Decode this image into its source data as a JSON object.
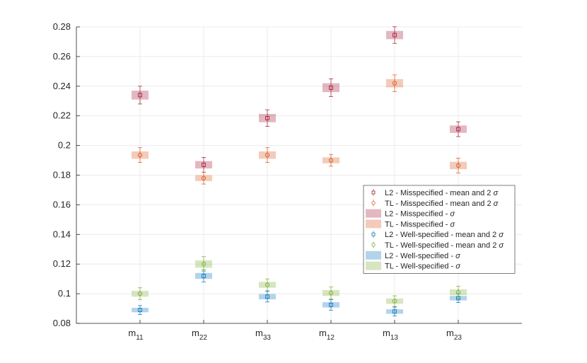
{
  "chart_data": {
    "type": "errorbar-boxplot",
    "categories": [
      "m",
      "m",
      "m",
      "m",
      "m",
      "m"
    ],
    "category_subscripts": [
      "11",
      "22",
      "33",
      "12",
      "13",
      "23"
    ],
    "ylim": [
      0.08,
      0.28
    ],
    "yticks": [
      0.08,
      0.1,
      0.12,
      0.14,
      0.16,
      0.18,
      0.2,
      0.22,
      0.24,
      0.26,
      0.28
    ],
    "ytick_labels": [
      "0.08",
      "0.1",
      "0.12",
      "0.14",
      "0.16",
      "0.18",
      "0.2",
      "0.22",
      "0.24",
      "0.26",
      "0.28"
    ],
    "grid": true,
    "series": [
      {
        "name": "L2 - Misspecified",
        "color": "#a2142f",
        "marker": "square",
        "mean": [
          0.234,
          0.187,
          0.2185,
          0.239,
          0.2745,
          0.211
        ],
        "std": [
          0.003,
          0.0025,
          0.0028,
          0.003,
          0.0028,
          0.0025
        ]
      },
      {
        "name": "TL - Misspecified",
        "color": "#d95319",
        "marker": "circle",
        "mean": [
          0.1935,
          0.178,
          0.1935,
          0.19,
          0.242,
          0.1865
        ],
        "std": [
          0.0025,
          0.002,
          0.0025,
          0.002,
          0.0028,
          0.0025
        ]
      },
      {
        "name": "L2 - Well-specified",
        "color": "#0072bd",
        "marker": "square",
        "mean": [
          0.089,
          0.112,
          0.098,
          0.0925,
          0.088,
          0.097
        ],
        "std": [
          0.0015,
          0.002,
          0.0018,
          0.0018,
          0.0015,
          0.0015
        ]
      },
      {
        "name": "TL - Well-specified",
        "color": "#77ac30",
        "marker": "circle",
        "mean": [
          0.1,
          0.12,
          0.106,
          0.1005,
          0.095,
          0.101
        ],
        "std": [
          0.002,
          0.0025,
          0.002,
          0.002,
          0.0018,
          0.002
        ]
      }
    ],
    "legend": {
      "placement": "right",
      "entries": [
        {
          "label": "L2 - Misspecified - mean and 2",
          "symbol": "σ",
          "kind": "marker",
          "series": 0
        },
        {
          "label": "TL - Misspecified - mean and 2",
          "symbol": "σ",
          "kind": "marker",
          "series": 1
        },
        {
          "label": "L2 - Misspecified -",
          "symbol": "σ",
          "kind": "patch",
          "series": 0
        },
        {
          "label": "TL - Misspecified -",
          "symbol": "σ",
          "kind": "patch",
          "series": 1
        },
        {
          "label": "L2 - Well-specified - mean and 2",
          "symbol": "σ",
          "kind": "marker",
          "series": 2
        },
        {
          "label": "TL - Well-specified - mean and 2",
          "symbol": "σ",
          "kind": "marker",
          "series": 3
        },
        {
          "label": "L2 - Well-specified -",
          "symbol": "σ",
          "kind": "patch",
          "series": 2
        },
        {
          "label": "TL - Well-specified -",
          "symbol": "σ",
          "kind": "patch",
          "series": 3
        }
      ]
    }
  }
}
